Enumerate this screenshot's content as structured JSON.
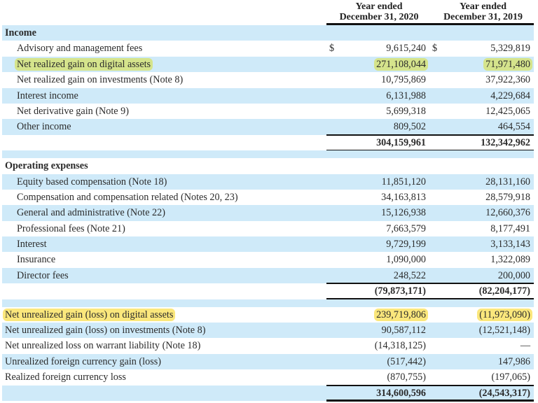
{
  "header": {
    "col1": [
      "Year ended",
      "December 31, 2020"
    ],
    "col2": [
      "Year ended",
      "December 31, 2019"
    ]
  },
  "colors": {
    "stripe": "#cfeaf9",
    "highlight_green": "#d5e48c",
    "highlight_yellow": "#fbe77c"
  },
  "rows": [
    {
      "type": "section",
      "label": "Income"
    },
    {
      "type": "item",
      "label": "Advisory and management fees",
      "dollar": true,
      "v2020": "9,615,240",
      "v2019": "5,329,819"
    },
    {
      "type": "item",
      "label": "Net realized gain on digital assets",
      "v2020": "271,108,044",
      "v2019": "71,971,480",
      "highlight": "highlight_green"
    },
    {
      "type": "item",
      "label": "Net realized gain on investments (Note 8)",
      "v2020": "10,795,869",
      "v2019": "37,922,360"
    },
    {
      "type": "item",
      "label": "Interest income",
      "v2020": "6,131,988",
      "v2019": "4,229,684"
    },
    {
      "type": "item",
      "label": "Net derivative gain (Note 9)",
      "v2020": "5,699,318",
      "v2019": "12,425,065"
    },
    {
      "type": "item",
      "label": "Other income",
      "v2020": "809,502",
      "v2019": "464,554"
    },
    {
      "type": "total",
      "v2020": "304,159,961",
      "v2019": "132,342,962"
    },
    {
      "type": "spacer"
    },
    {
      "type": "section",
      "label": "Operating expenses"
    },
    {
      "type": "item",
      "label": "Equity based compensation (Note 18)",
      "v2020": "11,851,120",
      "v2019": "28,131,160"
    },
    {
      "type": "item",
      "label": "Compensation and compensation related (Notes 20, 23)",
      "v2020": "34,163,813",
      "v2019": "28,579,918"
    },
    {
      "type": "item",
      "label": "General and administrative (Note 22)",
      "v2020": "15,126,938",
      "v2019": "12,660,376"
    },
    {
      "type": "item",
      "label": "Professional fees (Note 21)",
      "v2020": "7,663,579",
      "v2019": "8,177,491"
    },
    {
      "type": "item",
      "label": "Interest",
      "v2020": "9,729,199",
      "v2019": "3,133,143"
    },
    {
      "type": "item",
      "label": "Insurance",
      "v2020": "1,090,000",
      "v2019": "1,322,089"
    },
    {
      "type": "item",
      "label": "Director fees",
      "v2020": "248,522",
      "v2019": "200,000"
    },
    {
      "type": "total",
      "v2020": "(79,873,171)",
      "v2019": "(82,204,177)"
    },
    {
      "type": "spacer"
    },
    {
      "type": "top",
      "label": "Net unrealized gain (loss) on digital assets",
      "v2020": "239,719,806",
      "v2019": "(11,973,090)",
      "highlight": "highlight_yellow"
    },
    {
      "type": "top",
      "label": "Net unrealized gain (loss) on investments (Note 8)",
      "v2020": "90,587,112",
      "v2019": "(12,521,148)"
    },
    {
      "type": "top",
      "label": "Net unrealized loss on warrant liability (Note 18)",
      "v2020": "(14,318,125)",
      "v2019": "—"
    },
    {
      "type": "top",
      "label": "Unrealized foreign currency gain (loss)",
      "v2020": "(517,442)",
      "v2019": "147,986"
    },
    {
      "type": "top",
      "label": "Realized foreign currency loss",
      "v2020": "(870,755)",
      "v2019": "(197,065)"
    },
    {
      "type": "total",
      "v2020": "314,600,596",
      "v2019": "(24,543,317)"
    }
  ],
  "currency_symbol": "$"
}
